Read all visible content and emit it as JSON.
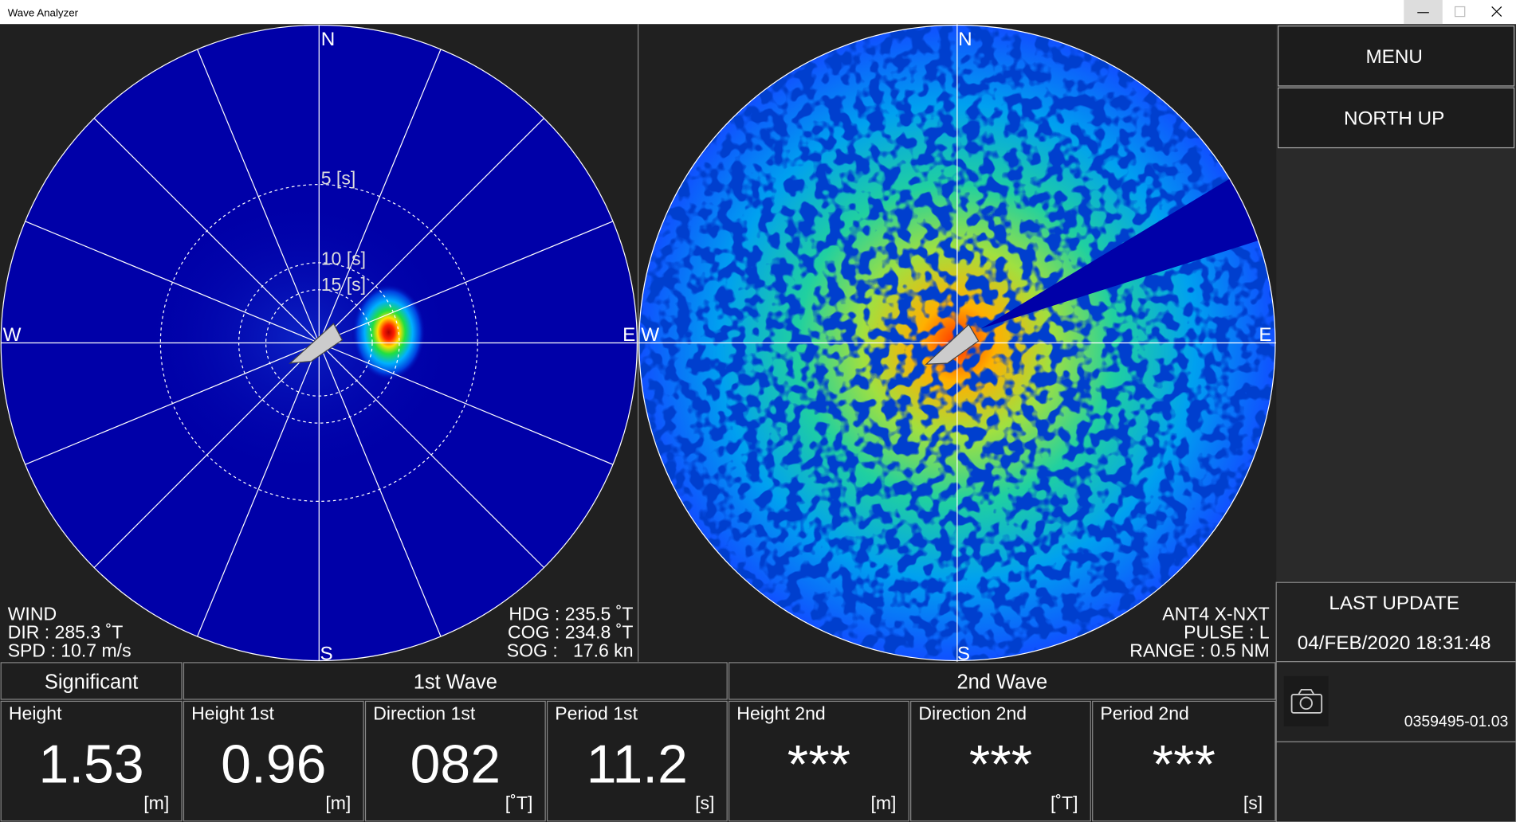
{
  "window": {
    "title": "Wave Analyzer"
  },
  "left_plot": {
    "compass": {
      "n": "N",
      "w": "W",
      "e": "E",
      "s": "S"
    },
    "rings": [
      "5 [s]",
      "10 [s]",
      "15 [s]"
    ],
    "wind": {
      "title": "WIND",
      "dir": "DIR : 285.3 ˚T",
      "spd": "SPD : 10.7 m/s"
    },
    "nav": {
      "hdg": "HDG : 235.5 ˚T",
      "cog": "COG : 234.8 ˚T",
      "sog": "SOG :   17.6 kn"
    }
  },
  "right_plot": {
    "compass": {
      "n": "N",
      "w": "W",
      "e": "E",
      "s": "S"
    },
    "antenna": "ANT4 X-NXT",
    "pulse": "PULSE : L",
    "range": "RANGE : 0.5 NM"
  },
  "sidebar": {
    "menu": "MENU",
    "orientation": "NORTH UP",
    "last_update_label": "LAST UPDATE",
    "last_update": "04/FEB/2020 18:31:48",
    "version": "0359495-01.03"
  },
  "table": {
    "groups": [
      "Significant",
      "1st Wave",
      "2nd Wave"
    ],
    "cells": [
      {
        "label": "Height",
        "value": "1.53",
        "unit": "[m]"
      },
      {
        "label": "Height 1st",
        "value": "0.96",
        "unit": "[m]"
      },
      {
        "label": "Direction 1st",
        "value": "082",
        "unit": "[˚T]"
      },
      {
        "label": "Period 1st",
        "value": "11.2",
        "unit": "[s]"
      },
      {
        "label": "Height 2nd",
        "value": "***",
        "unit": "[m]"
      },
      {
        "label": "Direction 2nd",
        "value": "***",
        "unit": "[˚T]"
      },
      {
        "label": "Period 2nd",
        "value": "***",
        "unit": "[s]"
      }
    ]
  }
}
